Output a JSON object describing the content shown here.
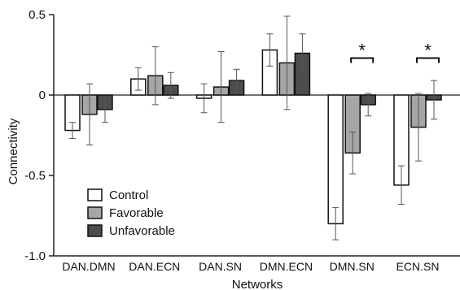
{
  "chart_data": {
    "type": "bar",
    "ylabel": "Connectivity",
    "xlabel": "Networks",
    "ylim": [
      -1.0,
      0.5
    ],
    "yticks": [
      {
        "value": 0.5,
        "label": "0.5"
      },
      {
        "value": 0,
        "label": "0"
      },
      {
        "value": -0.5,
        "label": "-0.5"
      },
      {
        "value": -1.0,
        "label": "-1.0"
      }
    ],
    "categories": [
      "DAN.DMN",
      "DAN.ECN",
      "DAN.SN",
      "DMN.ECN",
      "DMN.SN",
      "ECN.SN"
    ],
    "series": [
      {
        "name": "Control",
        "color": "#ffffff",
        "values": [
          -0.22,
          0.1,
          -0.02,
          0.28,
          -0.8,
          -0.56
        ],
        "errors": [
          0.05,
          0.07,
          0.09,
          0.1,
          0.1,
          0.12
        ]
      },
      {
        "name": "Favorable",
        "color": "#a6a6a6",
        "values": [
          -0.12,
          0.12,
          0.05,
          0.2,
          -0.36,
          -0.2
        ],
        "errors": [
          0.19,
          0.18,
          0.22,
          0.29,
          0.13,
          0.21
        ]
      },
      {
        "name": "Unfavorable",
        "color": "#4d4d4d",
        "values": [
          -0.09,
          0.06,
          0.09,
          0.26,
          -0.06,
          -0.03
        ],
        "errors": [
          0.08,
          0.08,
          0.07,
          0.12,
          0.07,
          0.12
        ]
      }
    ],
    "significance": [
      {
        "category": "DMN.SN",
        "label": "*",
        "from": "Favorable",
        "to": "Unfavorable"
      },
      {
        "category": "ECN.SN",
        "label": "*",
        "from": "Favorable",
        "to": "Unfavorable"
      }
    ],
    "legend": "bottom-left",
    "grid": false
  }
}
